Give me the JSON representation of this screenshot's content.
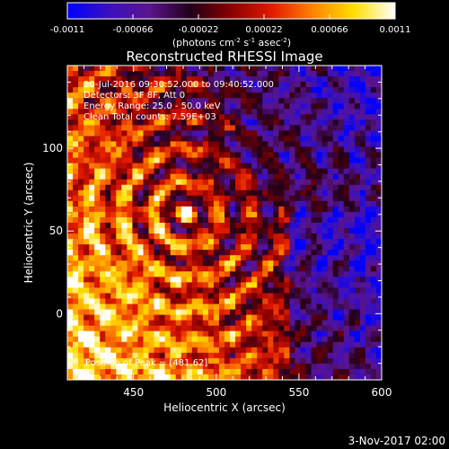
{
  "chart_data": {
    "type": "heatmap",
    "title": "Reconstructed RHESSI Image",
    "xlabel": "Heliocentric X (arcsec)",
    "ylabel": "Heliocentric Y (arcsec)",
    "xlim": [
      410,
      600
    ],
    "ylim": [
      -40,
      150
    ],
    "xticks": [
      450,
      500,
      550,
      600
    ],
    "yticks": [
      0,
      50,
      100
    ],
    "colorbar": {
      "min": -0.0011,
      "max": 0.0011,
      "ticks": [
        "-0.0011",
        "-0.00066",
        "-0.00022",
        "0.00022",
        "0.00066",
        "0.0011"
      ],
      "unit_parts": [
        "(photons cm",
        "-2",
        " s",
        "-1",
        " asec",
        "-2",
        ")"
      ],
      "colormap": [
        "#0000ff",
        "#3a10c0",
        "#5b148c",
        "#220018",
        "#8a0000",
        "#e31a00",
        "#ff8400",
        "#ffe000",
        "#ffffff"
      ]
    },
    "annotations": [
      "20-Jul-2016 09:30:52.000 to 09:40:52.000",
      "Detectors: 3F 8F, Att 0",
      "Energy Range: 25.0 - 50.0 keV",
      "Clean    Total counts: 7.59E+03"
    ],
    "peak_label": "Position of Peak = [481,62]",
    "peak": [
      481,
      62
    ]
  },
  "footer": {
    "date": "3-Nov-2017 02:00"
  }
}
